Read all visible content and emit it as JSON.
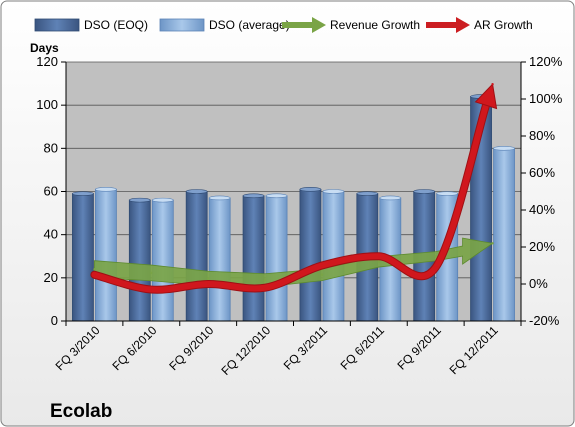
{
  "chart_data": {
    "type": "bar",
    "company": "Ecolab",
    "left_axis_title": "Days",
    "categories": [
      "FQ 3/2010",
      "FQ 6/2010",
      "FQ 9/2010",
      "FQ 12/2010",
      "FQ 3/2011",
      "FQ 6/2011",
      "FQ 9/2011",
      "FQ 12/2011"
    ],
    "left_axis": {
      "min": 0,
      "max": 120,
      "ticks": [
        0,
        20,
        40,
        60,
        80,
        100,
        120
      ]
    },
    "right_axis": {
      "min": -20,
      "max": 120,
      "ticks": [
        -20,
        0,
        20,
        40,
        60,
        80,
        100,
        120
      ],
      "tick_labels": [
        "-20%",
        "0%",
        "20%",
        "40%",
        "60%",
        "80%",
        "100%",
        "120%"
      ]
    },
    "series": [
      {
        "name": "DSO (EOQ)",
        "kind": "bar",
        "axis": "left",
        "color": "#4a6b9c",
        "values": [
          59,
          56,
          60,
          58,
          61,
          59,
          60,
          104
        ]
      },
      {
        "name": "DSO (average)",
        "kind": "bar",
        "axis": "left",
        "color": "#8fb3dc",
        "values": [
          61,
          56,
          57,
          58,
          60,
          57,
          59,
          80
        ]
      },
      {
        "name": "Revenue Growth",
        "kind": "arrow-line",
        "axis": "right",
        "color": "#7aa446",
        "values": [
          8,
          6,
          3,
          2,
          5,
          12,
          15,
          22
        ]
      },
      {
        "name": "AR Growth",
        "kind": "arrow-line",
        "axis": "right",
        "color": "#d0171d",
        "values": [
          5,
          -3,
          0,
          -2,
          10,
          15,
          9,
          108
        ]
      }
    ],
    "grid": true,
    "plot_background": "#c0c0c0",
    "legend_position": "top"
  }
}
